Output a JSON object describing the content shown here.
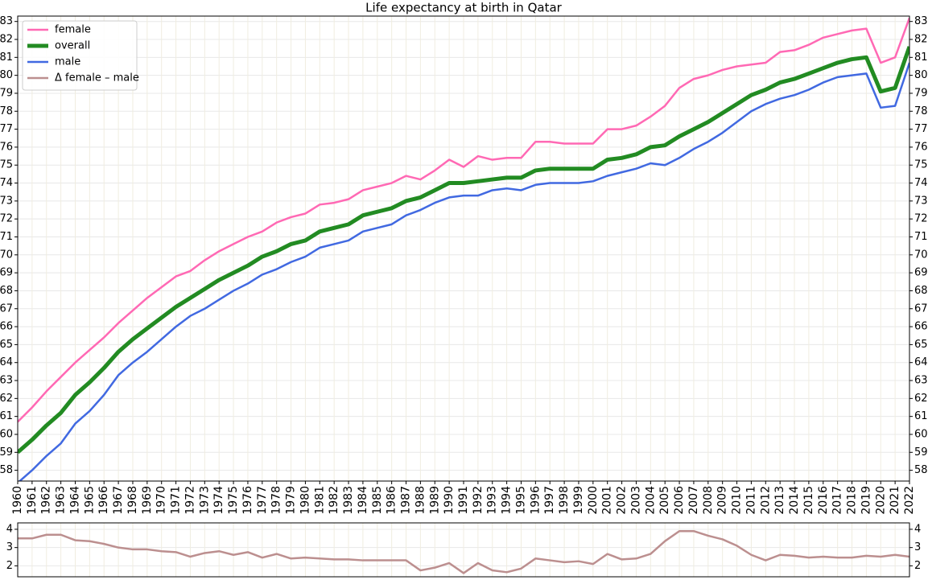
{
  "chart_data": [
    {
      "type": "line",
      "title": "Life expectancy at birth in Qatar",
      "x": [
        1960,
        1961,
        1962,
        1963,
        1964,
        1965,
        1966,
        1967,
        1968,
        1969,
        1970,
        1971,
        1972,
        1973,
        1974,
        1975,
        1976,
        1977,
        1978,
        1979,
        1980,
        1981,
        1982,
        1983,
        1984,
        1985,
        1986,
        1987,
        1988,
        1989,
        1990,
        1991,
        1992,
        1993,
        1994,
        1995,
        1996,
        1997,
        1998,
        1999,
        2000,
        2001,
        2002,
        2003,
        2004,
        2005,
        2006,
        2007,
        2008,
        2009,
        2010,
        2011,
        2012,
        2013,
        2014,
        2015,
        2016,
        2017,
        2018,
        2019,
        2020,
        2021,
        2022
      ],
      "series": [
        {
          "name": "female",
          "color": "#ff69b4",
          "linewidth": 2.5,
          "values": [
            60.7,
            61.5,
            62.4,
            63.2,
            64.0,
            64.7,
            65.4,
            66.2,
            66.9,
            67.6,
            68.2,
            68.8,
            69.1,
            69.7,
            70.2,
            70.6,
            71.0,
            71.3,
            71.8,
            72.1,
            72.3,
            72.8,
            72.9,
            73.1,
            73.6,
            73.8,
            74.0,
            74.4,
            74.2,
            74.7,
            75.3,
            74.9,
            75.5,
            75.3,
            75.4,
            75.4,
            76.3,
            76.3,
            76.2,
            76.2,
            76.2,
            77.0,
            77.0,
            77.2,
            77.7,
            78.3,
            79.3,
            79.8,
            80.0,
            80.3,
            80.5,
            80.6,
            80.7,
            81.3,
            81.4,
            81.7,
            82.1,
            82.3,
            82.5,
            82.6,
            80.7,
            81.0,
            83.2
          ]
        },
        {
          "name": "overall",
          "color": "#228b22",
          "linewidth": 5,
          "values": [
            59.0,
            59.7,
            60.5,
            61.2,
            62.2,
            62.9,
            63.7,
            64.6,
            65.3,
            65.9,
            66.5,
            67.1,
            67.6,
            68.1,
            68.6,
            69.0,
            69.4,
            69.9,
            70.2,
            70.6,
            70.8,
            71.3,
            71.5,
            71.7,
            72.2,
            72.4,
            72.6,
            73.0,
            73.2,
            73.6,
            74.0,
            74.0,
            74.1,
            74.2,
            74.3,
            74.3,
            74.7,
            74.8,
            74.8,
            74.8,
            74.8,
            75.3,
            75.4,
            75.6,
            76.0,
            76.1,
            76.6,
            77.0,
            77.4,
            77.9,
            78.4,
            78.9,
            79.2,
            79.6,
            79.8,
            80.1,
            80.4,
            80.7,
            80.9,
            81.0,
            79.1,
            79.3,
            81.6
          ]
        },
        {
          "name": "male",
          "color": "#4169e1",
          "linewidth": 2.5,
          "values": [
            57.3,
            58.0,
            58.8,
            59.5,
            60.6,
            61.3,
            62.2,
            63.3,
            64.0,
            64.6,
            65.3,
            66.0,
            66.6,
            67.0,
            67.5,
            68.0,
            68.4,
            68.9,
            69.2,
            69.6,
            69.9,
            70.4,
            70.6,
            70.8,
            71.3,
            71.5,
            71.7,
            72.2,
            72.5,
            72.9,
            73.2,
            73.3,
            73.3,
            73.6,
            73.7,
            73.6,
            73.9,
            74.0,
            74.0,
            74.0,
            74.1,
            74.4,
            74.6,
            74.8,
            75.1,
            75.0,
            75.4,
            75.9,
            76.3,
            76.8,
            77.4,
            78.0,
            78.4,
            78.7,
            78.9,
            79.2,
            79.6,
            79.9,
            80.0,
            80.1,
            78.2,
            78.3,
            80.7
          ]
        }
      ],
      "xlim": [
        1960,
        2022
      ],
      "xticks": [
        1960,
        1961,
        1962,
        1963,
        1964,
        1965,
        1966,
        1967,
        1968,
        1969,
        1970,
        1971,
        1972,
        1973,
        1974,
        1975,
        1976,
        1977,
        1978,
        1979,
        1980,
        1981,
        1982,
        1983,
        1984,
        1985,
        1986,
        1987,
        1988,
        1989,
        1990,
        1991,
        1992,
        1993,
        1994,
        1995,
        1996,
        1997,
        1998,
        1999,
        2000,
        2001,
        2002,
        2003,
        2004,
        2005,
        2006,
        2007,
        2008,
        2009,
        2010,
        2011,
        2012,
        2013,
        2014,
        2015,
        2016,
        2017,
        2018,
        2019,
        2020,
        2021,
        2022
      ],
      "ylim": [
        57.4,
        83.3
      ],
      "yticks": [
        58,
        59,
        60,
        61,
        62,
        63,
        64,
        65,
        66,
        67,
        68,
        69,
        70,
        71,
        72,
        73,
        74,
        75,
        76,
        77,
        78,
        79,
        80,
        81,
        82,
        83
      ],
      "grid": true,
      "legend": "upper left"
    },
    {
      "type": "line",
      "x": [
        1960,
        1961,
        1962,
        1963,
        1964,
        1965,
        1966,
        1967,
        1968,
        1969,
        1970,
        1971,
        1972,
        1973,
        1974,
        1975,
        1976,
        1977,
        1978,
        1979,
        1980,
        1981,
        1982,
        1983,
        1984,
        1985,
        1986,
        1987,
        1988,
        1989,
        1990,
        1991,
        1992,
        1993,
        1994,
        1995,
        1996,
        1997,
        1998,
        1999,
        2000,
        2001,
        2002,
        2003,
        2004,
        2005,
        2006,
        2007,
        2008,
        2009,
        2010,
        2011,
        2012,
        2013,
        2014,
        2015,
        2016,
        2017,
        2018,
        2019,
        2020,
        2021,
        2022
      ],
      "series": [
        {
          "name": "Δ female – male",
          "color": "#bc8f8f",
          "linewidth": 2.5,
          "values": [
            3.5,
            3.5,
            3.7,
            3.7,
            3.4,
            3.35,
            3.2,
            3.0,
            2.9,
            2.9,
            2.8,
            2.75,
            2.5,
            2.7,
            2.8,
            2.6,
            2.75,
            2.45,
            2.65,
            2.4,
            2.45,
            2.4,
            2.35,
            2.35,
            2.3,
            2.3,
            2.3,
            2.3,
            1.75,
            1.9,
            2.15,
            1.6,
            2.15,
            1.75,
            1.65,
            1.85,
            2.4,
            2.3,
            2.2,
            2.25,
            2.1,
            2.65,
            2.35,
            2.4,
            2.65,
            3.35,
            3.9,
            3.9,
            3.65,
            3.45,
            3.1,
            2.6,
            2.3,
            2.6,
            2.55,
            2.45,
            2.5,
            2.45,
            2.45,
            2.55,
            2.5,
            2.6,
            2.5
          ]
        }
      ],
      "xlim": [
        1960,
        2022
      ],
      "ylim": [
        1.4,
        4.35
      ],
      "yticks": [
        2,
        3,
        4
      ],
      "grid": true
    }
  ]
}
